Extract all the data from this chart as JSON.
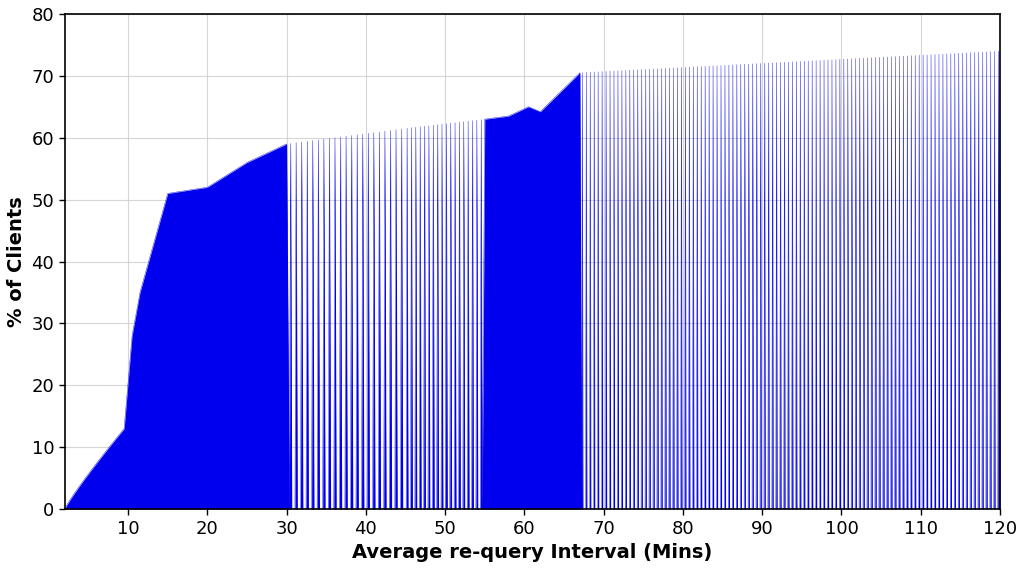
{
  "xlabel": "Average re-query Interval (Mins)",
  "ylabel": "% of Clients",
  "xlim": [
    2,
    120
  ],
  "ylim": [
    0,
    80
  ],
  "xticks": [
    10,
    20,
    30,
    40,
    50,
    60,
    70,
    80,
    90,
    100,
    110,
    120
  ],
  "yticks": [
    0,
    10,
    20,
    30,
    40,
    50,
    60,
    70,
    80
  ],
  "fill_color": "#0000EE",
  "background_color": "#FFFFFF",
  "grid_color": "#CCCCCC",
  "font_size": 13,
  "label_font_size": 14
}
